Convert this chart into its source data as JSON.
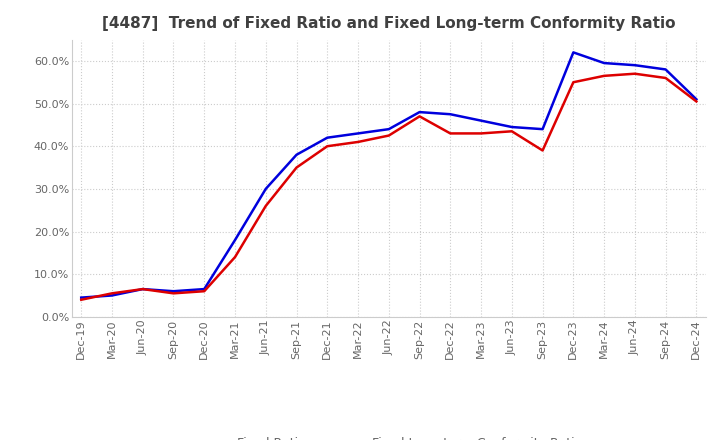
{
  "title": "[4487]  Trend of Fixed Ratio and Fixed Long-term Conformity Ratio",
  "title_fontsize": 11,
  "title_color": "#404040",
  "background_color": "#ffffff",
  "fixed_ratio": {
    "label": "Fixed Ratio",
    "color": "#0000dd",
    "dates": [
      "Dec-19",
      "Mar-20",
      "Jun-20",
      "Sep-20",
      "Dec-20",
      "Mar-21",
      "Jun-21",
      "Sep-21",
      "Dec-21",
      "Mar-22",
      "Jun-22",
      "Sep-22",
      "Dec-22",
      "Mar-23",
      "Jun-23",
      "Sep-23",
      "Dec-23",
      "Mar-24",
      "Jun-24",
      "Sep-24",
      "Dec-24"
    ],
    "values": [
      4.5,
      5.0,
      6.5,
      6.0,
      6.5,
      18.0,
      30.0,
      38.0,
      42.0,
      43.0,
      44.0,
      48.0,
      47.5,
      46.0,
      44.5,
      44.0,
      62.0,
      59.5,
      59.0,
      58.0,
      51.0
    ]
  },
  "fixed_lt_ratio": {
    "label": "Fixed Long-term Conformity Ratio",
    "color": "#dd0000",
    "dates": [
      "Dec-19",
      "Mar-20",
      "Jun-20",
      "Sep-20",
      "Dec-20",
      "Mar-21",
      "Jun-21",
      "Sep-21",
      "Dec-21",
      "Mar-22",
      "Jun-22",
      "Sep-22",
      "Dec-22",
      "Mar-23",
      "Jun-23",
      "Sep-23",
      "Dec-23",
      "Mar-24",
      "Jun-24",
      "Sep-24",
      "Dec-24"
    ],
    "values": [
      4.0,
      5.5,
      6.5,
      5.5,
      6.0,
      14.0,
      26.0,
      35.0,
      40.0,
      41.0,
      42.5,
      47.0,
      43.0,
      43.0,
      43.5,
      39.0,
      55.0,
      56.5,
      57.0,
      56.0,
      50.5
    ]
  },
  "ylim": [
    0,
    65
  ],
  "yticks": [
    0,
    10,
    20,
    30,
    40,
    50,
    60
  ],
  "grid_color": "#cccccc",
  "legend_fontsize": 9,
  "tick_fontsize": 8,
  "line_width": 1.8
}
